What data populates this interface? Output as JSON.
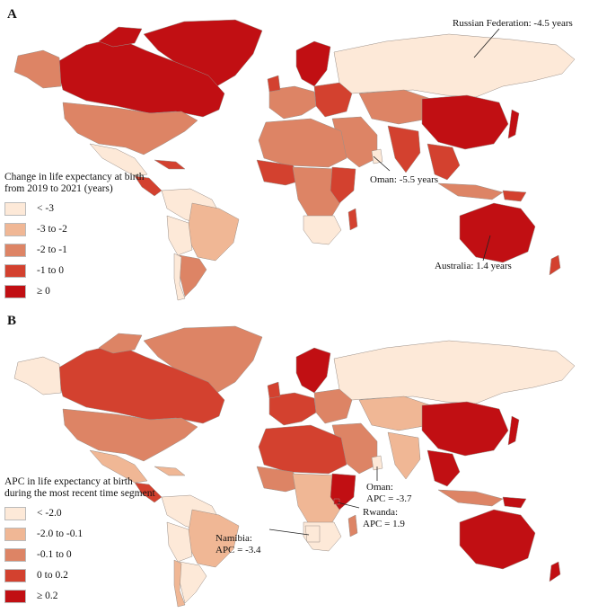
{
  "panels": [
    {
      "label": "A",
      "legend_title_line1": "Change in life expectancy at birth",
      "legend_title_line2": "from 2019 to 2021 (years)",
      "legend": [
        {
          "label": "< -3",
          "color": "#fde9d8"
        },
        {
          "label": "-3 to -2",
          "color": "#f0b795"
        },
        {
          "label": "-2 to -1",
          "color": "#dd8465"
        },
        {
          "label": "-1 to 0",
          "color": "#d3412f"
        },
        {
          "label": "≥ 0",
          "color": "#c10f13"
        }
      ],
      "annotations": [
        {
          "line1": "Russian Federation: -4.5 years",
          "line2": ""
        },
        {
          "line1": "Oman: -5.5 years",
          "line2": ""
        },
        {
          "line1": "Australia: 1.4 years",
          "line2": ""
        }
      ]
    },
    {
      "label": "B",
      "legend_title_line1": "APC in life expectancy at birth",
      "legend_title_line2": "during the most recent time segment",
      "legend": [
        {
          "label": "< -2.0",
          "color": "#fde9d8"
        },
        {
          "label": "-2.0 to -0.1",
          "color": "#f0b795"
        },
        {
          "label": "-0.1 to 0",
          "color": "#dd8465"
        },
        {
          "label": "0 to 0.2",
          "color": "#d3412f"
        },
        {
          "label": "≥ 0.2",
          "color": "#c10f13"
        }
      ],
      "annotations": [
        {
          "line1": "Oman:",
          "line2": "APC = -3.7"
        },
        {
          "line1": "Rwanda:",
          "line2": "APC = 1.9"
        },
        {
          "line1": "Namibia:",
          "line2": "APC = -3.4"
        }
      ]
    }
  ]
}
